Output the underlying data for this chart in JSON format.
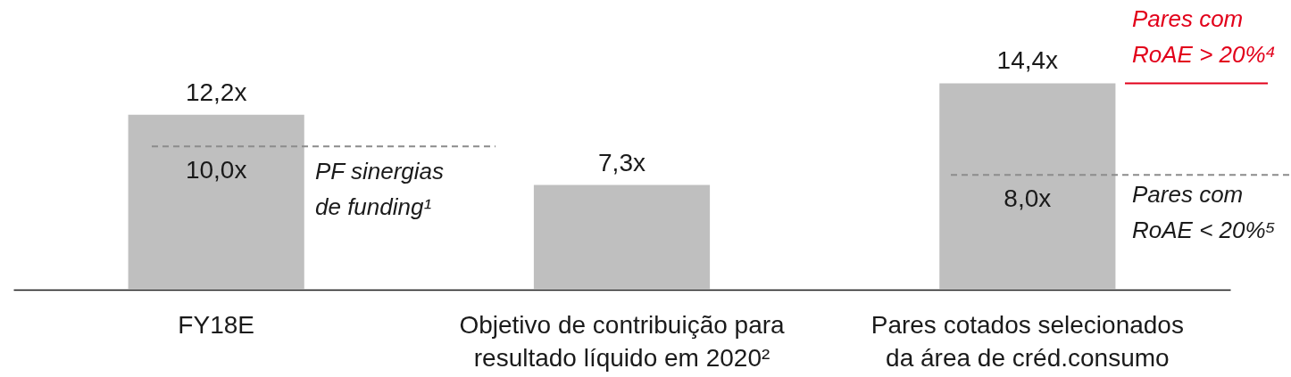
{
  "chart_data": {
    "type": "bar",
    "categories": [
      "FY18E",
      "Objetivo de contribuição para resultado líquido em 2020²",
      "Pares cotados selecionados da área de créd.consumo"
    ],
    "values": [
      12.2,
      7.3,
      14.4
    ],
    "value_labels": [
      "12,2x",
      "7,3x",
      "14,4x"
    ],
    "color": "#bfbfbf",
    "ref_lines": [
      {
        "axis": "y",
        "value": 10.0,
        "label": "PF sinergias de funding¹",
        "color": "#8c8c8c",
        "line_style": "dashed"
      },
      {
        "axis": "y",
        "value": 8.0,
        "label": "Pares com RoAE < 20%⁵",
        "color": "#8c8c8c",
        "line_style": "dashed"
      },
      {
        "axis": "y",
        "value": 14.4,
        "label": "Pares com RoAE > 20%⁴",
        "color": "#e2001a",
        "line_style": "solid"
      }
    ],
    "annotations": [
      {
        "text": "10,0x",
        "x": "FY18E",
        "y": 10.0
      },
      {
        "text": "8,0x",
        "x": "Pares cotados selecionados da área de créd.consumo",
        "y": 8.0
      }
    ]
  }
}
